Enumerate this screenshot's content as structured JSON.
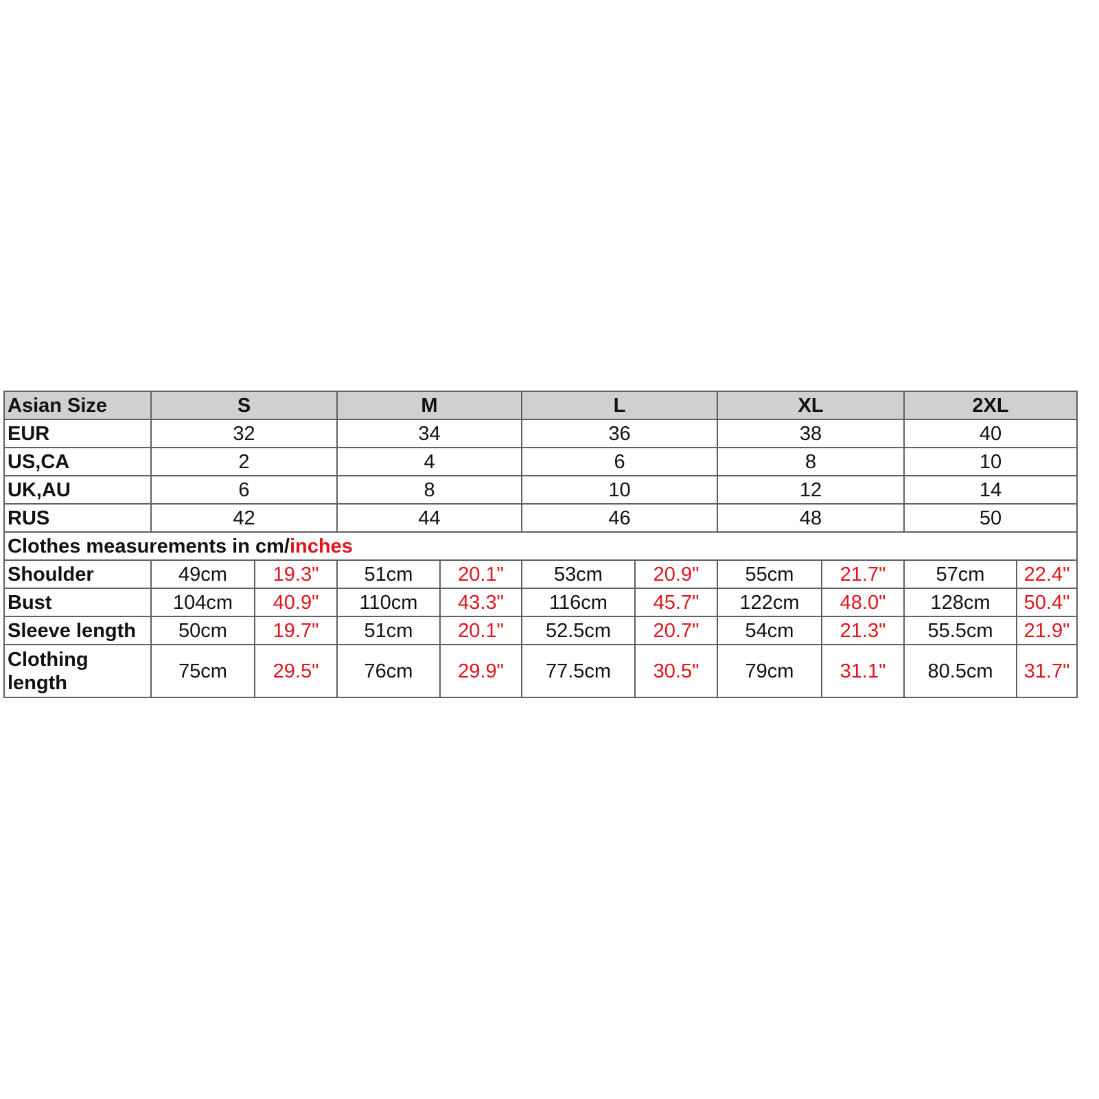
{
  "header": {
    "label": "Asian Size",
    "sizes": [
      "S",
      "M",
      "L",
      "XL",
      "2XL"
    ]
  },
  "conversion_rows": [
    {
      "label": "EUR",
      "values": [
        "32",
        "34",
        "36",
        "38",
        "40"
      ]
    },
    {
      "label": "US,CA",
      "values": [
        "2",
        "4",
        "6",
        "8",
        "10"
      ]
    },
    {
      "label": "UK,AU",
      "values": [
        "6",
        "8",
        "10",
        "12",
        "14"
      ]
    },
    {
      "label": "RUS",
      "values": [
        "42",
        "44",
        "46",
        "48",
        "50"
      ]
    }
  ],
  "section": {
    "text": "Clothes measurements in cm/",
    "highlight": "inches",
    "highlight_color": "#e0141c"
  },
  "measurement_rows": [
    {
      "label": "Shoulder",
      "cm": [
        "49cm",
        "51cm",
        "53cm",
        "55cm",
        "57cm"
      ],
      "inches": [
        "19.3\"",
        "20.1\"",
        "20.9\"",
        "21.7\"",
        "22.4\""
      ]
    },
    {
      "label": "Bust",
      "cm": [
        "104cm",
        "110cm",
        "116cm",
        "122cm",
        "128cm"
      ],
      "inches": [
        "40.9\"",
        "43.3\"",
        "45.7\"",
        "48.0\"",
        "50.4\""
      ]
    },
    {
      "label": "Sleeve length",
      "cm": [
        "50cm",
        "51cm",
        "52.5cm",
        "54cm",
        "55.5cm"
      ],
      "inches": [
        "19.7\"",
        "20.1\"",
        "20.7\"",
        "21.3\"",
        "21.9\""
      ]
    },
    {
      "label": "Clothing length",
      "cm": [
        "75cm",
        "76cm",
        "77.5cm",
        "79cm",
        "80.5cm"
      ],
      "inches": [
        "29.5\"",
        "29.9\"",
        "30.5\"",
        "31.1\"",
        "31.7\""
      ]
    }
  ],
  "colors": {
    "header_bg": "#d0d0d0",
    "border": "#606060",
    "inch_text": "#e0141c"
  }
}
